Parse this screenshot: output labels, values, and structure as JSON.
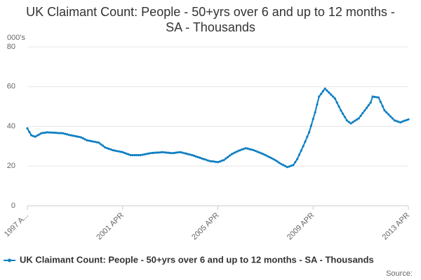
{
  "chart_data": {
    "type": "line",
    "title": "UK Claimant Count: People - 50+yrs over 6 and up to 12 months - SA - Thousands",
    "y_unit_label": "000's",
    "source_label": "Source:",
    "categories": [
      "1997 A...",
      null,
      null,
      null,
      null,
      null,
      null,
      null,
      null,
      null,
      null,
      null,
      null,
      null,
      null,
      null,
      null,
      null,
      null,
      null,
      null,
      null,
      null,
      null,
      null,
      null,
      null,
      null,
      null,
      null,
      null,
      null,
      null,
      null,
      null,
      null,
      null,
      null,
      null,
      null,
      null,
      null,
      null,
      null,
      null,
      null,
      null,
      null,
      "2001 APR",
      null,
      null,
      null,
      null,
      null,
      null,
      null,
      null,
      null,
      null,
      null,
      null,
      null,
      null,
      null,
      null,
      null,
      null,
      null,
      null,
      null,
      null,
      null,
      null,
      null,
      null,
      null,
      null,
      null,
      null,
      null,
      null,
      null,
      null,
      null,
      null,
      null,
      null,
      null,
      null,
      null,
      null,
      null,
      null,
      null,
      null,
      null,
      "2005 APR",
      null,
      null,
      null,
      null,
      null,
      null,
      null,
      null,
      null,
      null,
      null,
      null,
      null,
      null,
      null,
      null,
      null,
      null,
      null,
      null,
      null,
      null,
      null,
      null,
      null,
      null,
      null,
      null,
      null,
      null,
      null,
      null,
      null,
      null,
      null,
      null,
      null,
      null,
      null,
      null,
      null,
      null,
      null,
      null,
      null,
      null,
      null,
      "2009 APR",
      null,
      null,
      null,
      null,
      null,
      null,
      null,
      null,
      null,
      null,
      null,
      null,
      null,
      null,
      null,
      null,
      null,
      null,
      null,
      null,
      null,
      null,
      null,
      null,
      null,
      null,
      null,
      null,
      null,
      null,
      null,
      null,
      null,
      null,
      null,
      null,
      null,
      null,
      null,
      null,
      null,
      null,
      null,
      null,
      null,
      null,
      null,
      "2013 APR"
    ],
    "series": [
      {
        "name": "UK Claimant Count: People - 50+yrs over 6 and up to 12 months - SA - Thousands",
        "color": "#0e7fc2",
        "values": [
          39,
          37.2,
          35.5,
          35.1,
          34.8,
          35.4,
          35.9,
          36.5,
          36.7,
          36.8,
          37,
          36.9,
          36.9,
          36.8,
          36.8,
          36.7,
          36.6,
          36.6,
          36.5,
          36.2,
          36,
          35.7,
          35.5,
          35.3,
          35.1,
          34.9,
          34.7,
          34.5,
          34,
          33.5,
          33,
          32.8,
          32.6,
          32.4,
          32.2,
          32,
          31.8,
          31,
          30.3,
          29.5,
          29.1,
          28.7,
          28.4,
          28,
          27.8,
          27.6,
          27.4,
          27.2,
          27,
          26.6,
          26.2,
          25.9,
          25.5,
          25.5,
          25.5,
          25.5,
          25.5,
          25.5,
          25.7,
          25.9,
          26.1,
          26.3,
          26.5,
          26.6,
          26.7,
          26.8,
          26.8,
          26.9,
          27,
          26.9,
          26.8,
          26.7,
          26.6,
          26.5,
          26.6,
          26.8,
          26.9,
          27,
          26.8,
          26.5,
          26.3,
          26,
          25.8,
          25.5,
          25.2,
          24.8,
          24.5,
          24.2,
          23.8,
          23.5,
          23.2,
          22.8,
          22.5,
          22.4,
          22.3,
          22.1,
          22,
          22.3,
          22.7,
          23,
          23.8,
          24.5,
          25.3,
          26,
          26.5,
          27,
          27.5,
          27.9,
          28.3,
          28.6,
          29,
          28.8,
          28.5,
          28.3,
          28,
          27.6,
          27.2,
          26.8,
          26.4,
          26,
          25.5,
          25,
          24.5,
          24,
          23.5,
          22.9,
          22.3,
          21.6,
          21,
          20.5,
          20,
          19.5,
          19.8,
          20.2,
          20.5,
          22,
          23.5,
          25.7,
          27.8,
          30,
          32.3,
          34.7,
          37,
          40.3,
          43.7,
          47,
          51,
          55,
          56.3,
          57.7,
          59,
          58,
          57,
          56,
          55,
          54,
          52,
          50,
          48,
          46.3,
          44.7,
          43,
          42.2,
          41.5,
          42.1,
          42.8,
          43.4,
          44,
          45.3,
          46.7,
          48,
          49.3,
          50.7,
          52,
          55,
          54.8,
          54.7,
          54.5,
          52.3,
          50.2,
          48,
          47,
          46,
          45,
          44,
          43,
          42.7,
          42.3,
          42,
          42.4,
          42.8,
          43.1,
          43.5
        ]
      }
    ],
    "ylim": [
      0,
      80
    ],
    "yticks": [
      0,
      20,
      40,
      60,
      80
    ],
    "grid": true
  }
}
